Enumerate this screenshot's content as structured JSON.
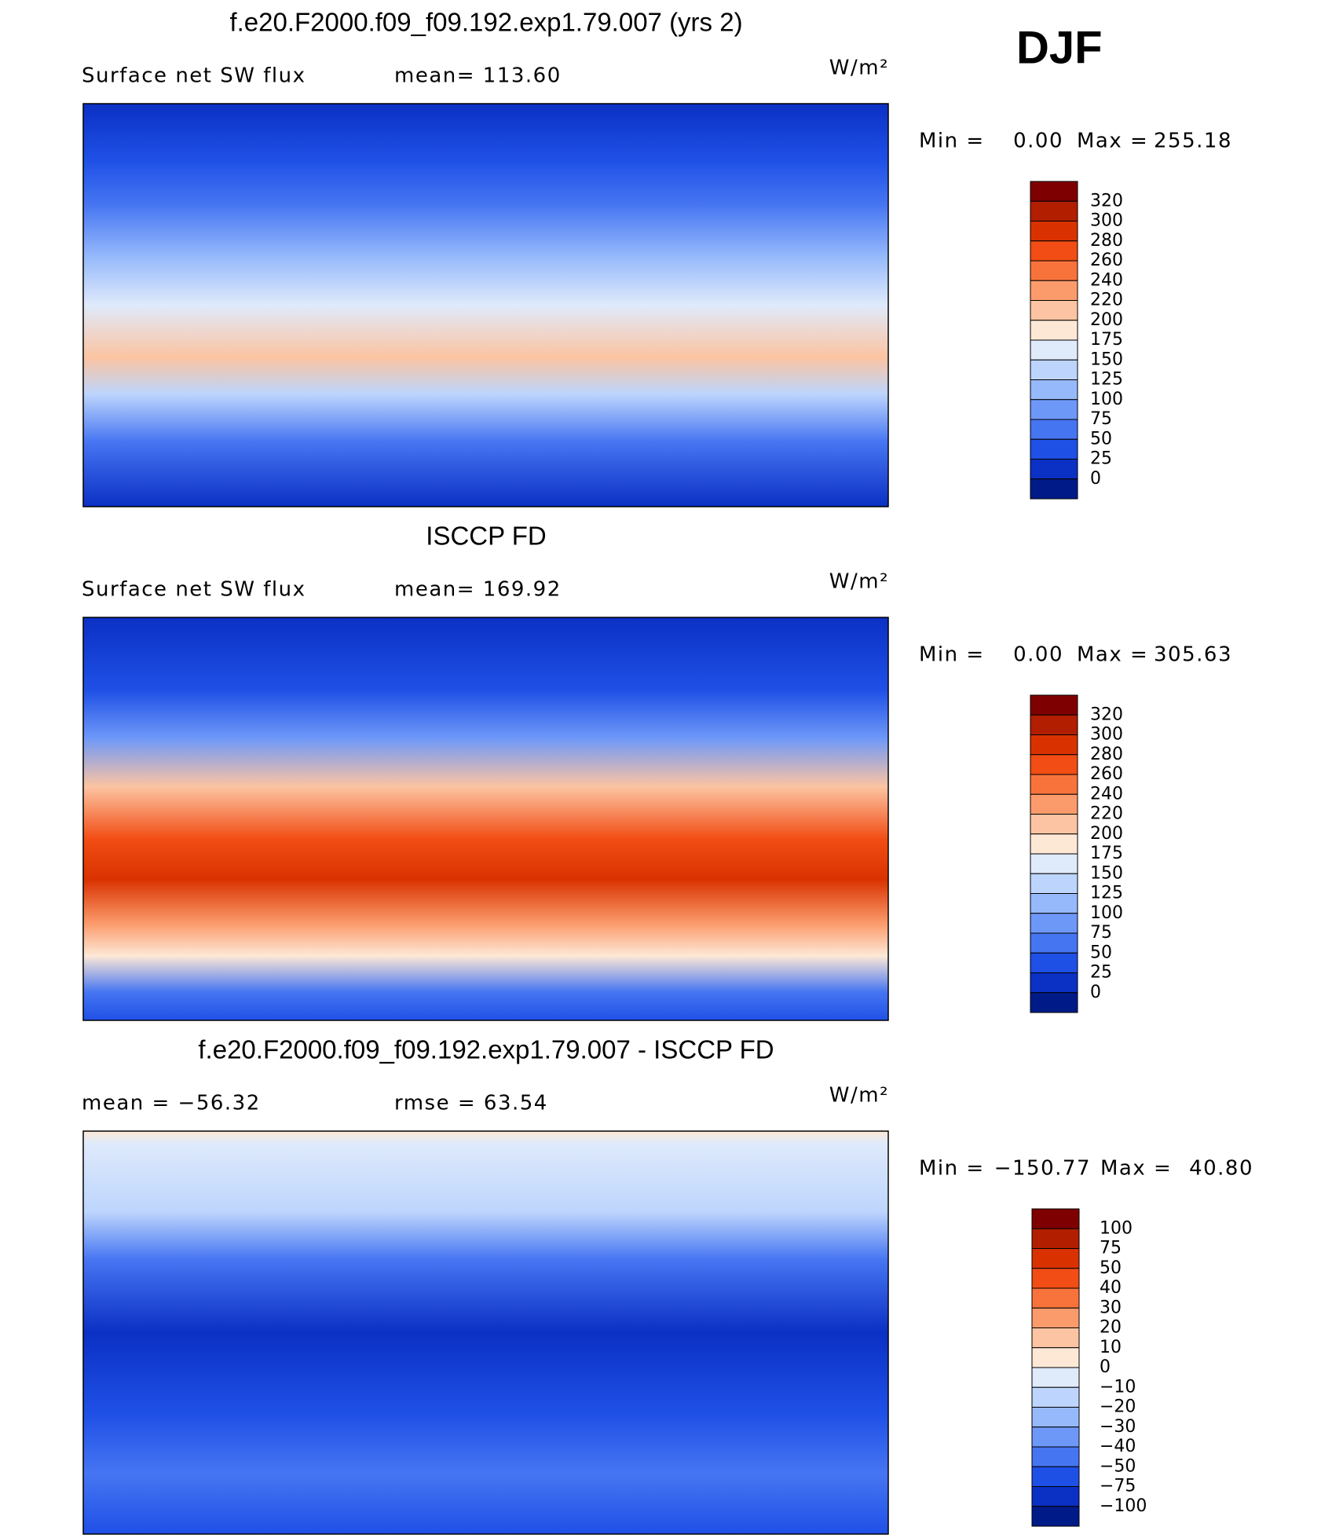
{
  "header": {
    "season": "DJF"
  },
  "colors": [
    "#7f0000",
    "#b21e00",
    "#d93200",
    "#f24d14",
    "#f8733c",
    "#fb9b6c",
    "#fcc4a2",
    "#fde8d6",
    "#dfeafb",
    "#bdd5fc",
    "#96b9fb",
    "#6e98f8",
    "#4675f2",
    "#1f50e6",
    "#0b30c4",
    "#001b88"
  ],
  "panels": [
    {
      "title": "f.e20.F2000.f09_f09.192.exp1.79.007 (yrs 2)",
      "left_label": "Surface net SW flux",
      "center_label": "mean= 113.60",
      "units": "W/m²",
      "min_label": "Min =",
      "min": "0.00",
      "max_label": "Max =",
      "max": "255.18",
      "levels": [
        "320",
        "300",
        "280",
        "260",
        "240",
        "220",
        "200",
        "175",
        "150",
        "125",
        "100",
        "75",
        "50",
        "25",
        "0"
      ]
    },
    {
      "title": "ISCCP FD",
      "left_label": "Surface net SW flux",
      "center_label": "mean= 169.92",
      "units": "W/m²",
      "min_label": "Min =",
      "min": "0.00",
      "max_label": "Max =",
      "max": "305.63",
      "levels": [
        "320",
        "300",
        "280",
        "260",
        "240",
        "220",
        "200",
        "175",
        "150",
        "125",
        "100",
        "75",
        "50",
        "25",
        "0"
      ]
    },
    {
      "title": "f.e20.F2000.f09_f09.192.exp1.79.007 - ISCCP FD",
      "left_label": "mean = −56.32",
      "center_label": "rmse =   63.54",
      "units": "W/m²",
      "min_label": "Min =",
      "min": "−150.77",
      "max_label": "Max =",
      "max": "40.80",
      "levels": [
        "100",
        "75",
        "50",
        "40",
        "30",
        "20",
        "10",
        "0",
        "−10",
        "−20",
        "−30",
        "−40",
        "−50",
        "−75",
        "−100"
      ]
    }
  ]
}
